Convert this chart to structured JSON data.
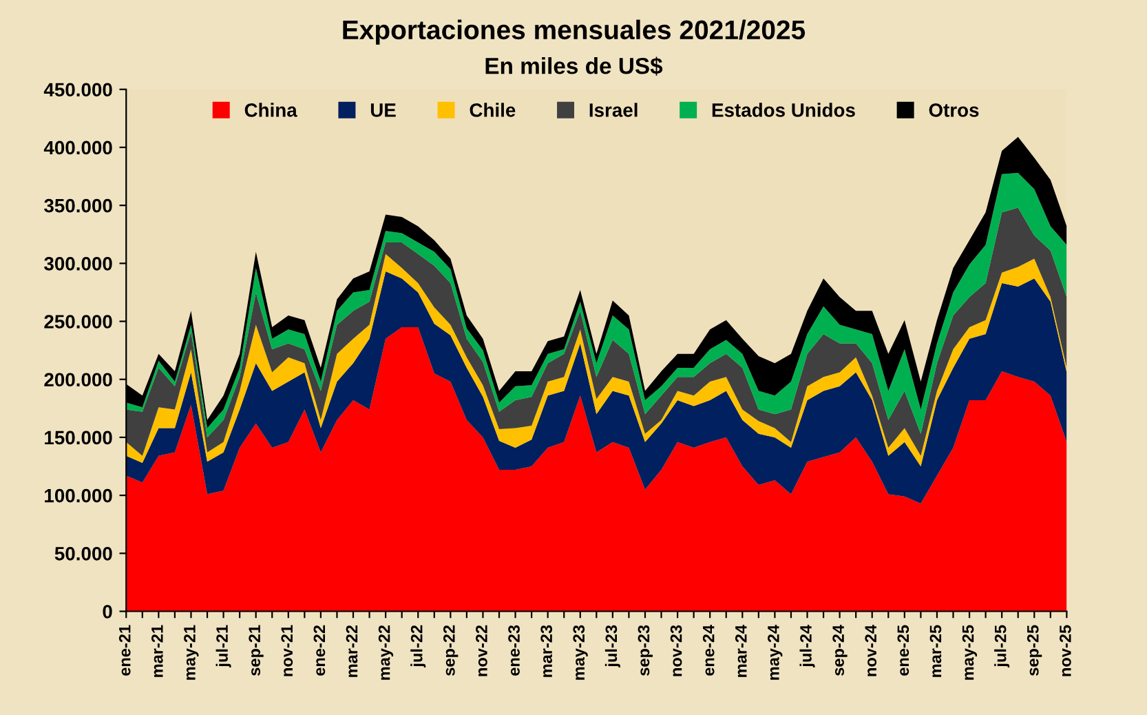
{
  "chart_data": {
    "type": "area",
    "stacked": true,
    "title": "Exportaciones mensuales 2021/2025",
    "subtitle": "En miles de US$",
    "categories": [
      "ene-21",
      null,
      "mar-21",
      null,
      "may-21",
      null,
      "jul-21",
      null,
      "sep-21",
      null,
      "nov-21",
      null,
      "ene-22",
      null,
      "mar-22",
      null,
      "may-22",
      null,
      "jul-22",
      null,
      "sep-22",
      null,
      "nov-22",
      null,
      "ene-23",
      null,
      "mar-23",
      null,
      "may-23",
      null,
      "jul-23",
      null,
      "sep-23",
      null,
      "nov-23",
      null,
      "ene-24",
      null,
      "mar-24",
      null,
      "may-24",
      null,
      "jul-24",
      null,
      "sep-24",
      null,
      "nov-24",
      null,
      "ene-25",
      null,
      "mar-25",
      null,
      "may-25",
      null,
      "jul-25",
      null,
      "sep-25",
      null,
      "nov-25"
    ],
    "series": [
      {
        "name": "China",
        "color": "#ff0000",
        "values": [
          117000,
          111000,
          134000,
          137000,
          178000,
          101000,
          104000,
          141000,
          162000,
          141000,
          146000,
          174000,
          137000,
          165000,
          182000,
          174000,
          235000,
          245000,
          245000,
          205000,
          198000,
          165000,
          150000,
          122000,
          122000,
          125000,
          141000,
          146000,
          186000,
          137000,
          146000,
          141000,
          105000,
          122000,
          146000,
          141000,
          146000,
          150000,
          125000,
          109000,
          113000,
          101000,
          129000,
          133000,
          137000,
          150000,
          129000,
          101000,
          99000,
          93000,
          117000,
          141000,
          182000,
          182000,
          207000,
          202000,
          198000,
          186000,
          146000
        ]
      },
      {
        "name": "UE",
        "color": "#002060",
        "values": [
          17000,
          17000,
          24000,
          21000,
          28000,
          28000,
          33000,
          33000,
          52000,
          49000,
          52000,
          32000,
          21000,
          33000,
          32000,
          61000,
          58000,
          42000,
          30000,
          43000,
          40000,
          45000,
          35000,
          25000,
          19000,
          23000,
          45000,
          44000,
          45000,
          33000,
          44000,
          45000,
          41000,
          40000,
          36000,
          36000,
          36000,
          40000,
          40000,
          44000,
          37000,
          40000,
          53000,
          57000,
          57000,
          56000,
          53000,
          33000,
          47000,
          32000,
          65000,
          69000,
          53000,
          57000,
          76000,
          78000,
          89000,
          81000,
          60000
        ]
      },
      {
        "name": "Chile",
        "color": "#ffc000",
        "values": [
          12000,
          6000,
          18000,
          16000,
          20000,
          8000,
          9000,
          16000,
          33000,
          16000,
          21000,
          8000,
          7000,
          24000,
          21000,
          12000,
          15000,
          9000,
          8000,
          14000,
          9000,
          9000,
          10000,
          10000,
          17000,
          12000,
          12000,
          12000,
          12000,
          13000,
          12000,
          12000,
          7000,
          3000,
          8000,
          9000,
          16000,
          12000,
          9000,
          11000,
          8000,
          5000,
          12000,
          12000,
          12000,
          13000,
          4000,
          7000,
          12000,
          9000,
          8000,
          16000,
          10000,
          12000,
          9000,
          17000,
          17000,
          4000,
          4000
        ]
      },
      {
        "name": "Israel",
        "color": "#404040",
        "values": [
          28000,
          38000,
          34000,
          20000,
          15000,
          13000,
          19000,
          12000,
          28000,
          20000,
          12000,
          12000,
          25000,
          25000,
          24000,
          20000,
          10000,
          22000,
          25000,
          36000,
          36000,
          16000,
          20000,
          15000,
          24000,
          25000,
          16000,
          20000,
          16000,
          19000,
          32000,
          24000,
          17000,
          21000,
          12000,
          16000,
          16000,
          20000,
          36000,
          10000,
          12000,
          28000,
          28000,
          37000,
          25000,
          12000,
          28000,
          24000,
          32000,
          19000,
          24000,
          29000,
          26000,
          32000,
          52000,
          51000,
          20000,
          40000,
          61000
        ]
      },
      {
        "name": "Estados Unidos",
        "color": "#00b050",
        "values": [
          6000,
          4000,
          6000,
          4000,
          6000,
          8000,
          9000,
          8000,
          21000,
          9000,
          12000,
          13000,
          8000,
          12000,
          16000,
          10000,
          10000,
          8000,
          10000,
          12000,
          12000,
          9000,
          10000,
          8000,
          12000,
          10000,
          8000,
          4000,
          8000,
          12000,
          21000,
          21000,
          12000,
          8000,
          8000,
          8000,
          12000,
          12000,
          12000,
          16000,
          16000,
          24000,
          17000,
          24000,
          16000,
          12000,
          25000,
          25000,
          36000,
          21000,
          17000,
          20000,
          28000,
          33000,
          33000,
          30000,
          40000,
          21000,
          45000
        ]
      },
      {
        "name": "Otros",
        "color": "#000000",
        "values": [
          16000,
          10000,
          6000,
          9000,
          12000,
          7000,
          12000,
          12000,
          14000,
          10000,
          12000,
          12000,
          12000,
          10000,
          12000,
          16000,
          14000,
          14000,
          14000,
          10000,
          9000,
          11000,
          10000,
          10000,
          13000,
          12000,
          11000,
          11000,
          10000,
          8000,
          13000,
          12000,
          8000,
          13000,
          12000,
          12000,
          17000,
          17000,
          13000,
          30000,
          28000,
          24000,
          20000,
          24000,
          24000,
          16000,
          20000,
          32000,
          25000,
          24000,
          20000,
          21000,
          21000,
          28000,
          20000,
          31000,
          27000,
          40000,
          16000
        ]
      }
    ],
    "ylim": [
      0,
      450000
    ],
    "yticks": [
      0,
      {
        "value": 50000,
        "label": "50.000"
      },
      {
        "value": 100000,
        "label": "100.000"
      },
      {
        "value": 150000,
        "label": "150.000"
      },
      {
        "value": 200000,
        "label": "200.000"
      },
      {
        "value": 250000,
        "label": "250.000"
      },
      {
        "value": 300000,
        "label": "300.000"
      },
      {
        "value": 350000,
        "label": "350.000"
      },
      {
        "value": 400000,
        "label": "400.000"
      },
      {
        "value": 450000,
        "label": "450.000"
      }
    ],
    "legend": "top"
  }
}
